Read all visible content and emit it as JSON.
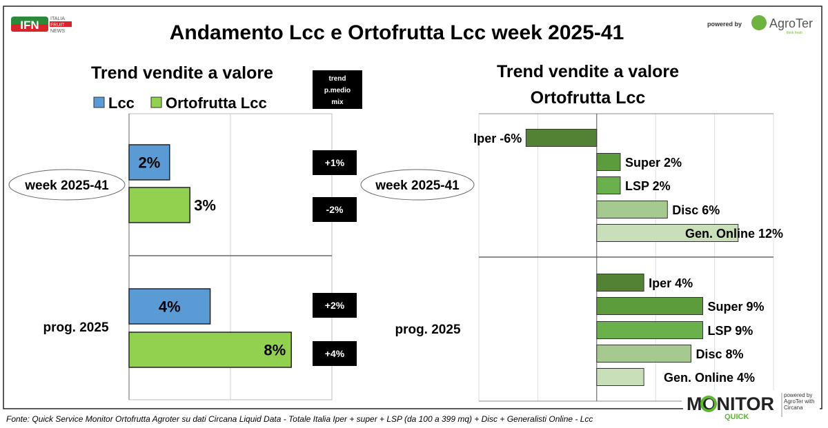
{
  "title": "Andamento Lcc e Ortofrutta Lcc week 2025-41",
  "logo_left": {
    "text": "IFN",
    "sub": [
      "ITALIA",
      "FRUIT",
      "NEWS"
    ]
  },
  "powered_by": "powered by",
  "logo_right": {
    "text": "AgroTer",
    "tagline": "think fresh"
  },
  "monitor_logo": {
    "text": "MONITOR",
    "sub": "QUICK",
    "powered": "powered by AgroTer with Circana"
  },
  "footer": "Fonte: Quick Service Monitor Ortofrutta Agroter su dati Circana Liquid Data - Totale Italia Iper + super + LSP (da 100 a 399 mq) + Disc + Generalisti Online - Lcc",
  "colors": {
    "lcc": "#5b9bd5",
    "ortofrutta": "#92d050",
    "iper": "#548235",
    "super": "#5c9c3c",
    "lsp": "#6ab04c",
    "disc": "#a6c98f",
    "gen_online": "#c8dfba"
  },
  "chart_data": [
    {
      "type": "bar",
      "orientation": "horizontal",
      "title": "Trend vendite a valore",
      "legend": [
        "Lcc",
        "Ortofrutta Lcc"
      ],
      "legend_placement": "top",
      "categories": [
        "week 2025-41",
        "prog. 2025"
      ],
      "series": [
        {
          "name": "Lcc",
          "values": [
            2,
            4
          ],
          "labels": [
            "2%",
            "4%"
          ]
        },
        {
          "name": "Ortofrutta Lcc",
          "values": [
            3,
            8
          ],
          "labels": [
            "3%",
            "8%"
          ]
        }
      ],
      "xlim": [
        0,
        10
      ],
      "grid": true,
      "side_header": "trend p.medio mix",
      "side_header_lines": [
        "trend",
        "p.medio",
        "mix"
      ],
      "side_values": [
        "+1%",
        "-2%",
        "+2%",
        "+4%"
      ]
    },
    {
      "type": "bar",
      "orientation": "horizontal",
      "title_lines": [
        "Trend vendite a valore",
        "Ortofrutta Lcc"
      ],
      "categories": [
        "week 2025-41",
        "prog. 2025"
      ],
      "groups": [
        {
          "category": "week 2025-41",
          "bars": [
            {
              "name": "Iper",
              "value": -6,
              "label": "Iper -6%"
            },
            {
              "name": "Super",
              "value": 2,
              "label": "Super 2%"
            },
            {
              "name": "LSP",
              "value": 2,
              "label": "LSP 2%"
            },
            {
              "name": "Disc",
              "value": 6,
              "label": "Disc 6%"
            },
            {
              "name": "Gen. Online",
              "value": 12,
              "label": "Gen. Online 12%"
            }
          ]
        },
        {
          "category": "prog. 2025",
          "bars": [
            {
              "name": "Iper",
              "value": 4,
              "label": "Iper 4%"
            },
            {
              "name": "Super",
              "value": 9,
              "label": "Super 9%"
            },
            {
              "name": "LSP",
              "value": 9,
              "label": "LSP 9%"
            },
            {
              "name": "Disc",
              "value": 8,
              "label": "Disc 8%"
            },
            {
              "name": "Gen. Online",
              "value": 4,
              "label": "Gen. Online 4%"
            }
          ]
        }
      ],
      "xlim": [
        -10,
        15
      ],
      "grid": true
    }
  ]
}
